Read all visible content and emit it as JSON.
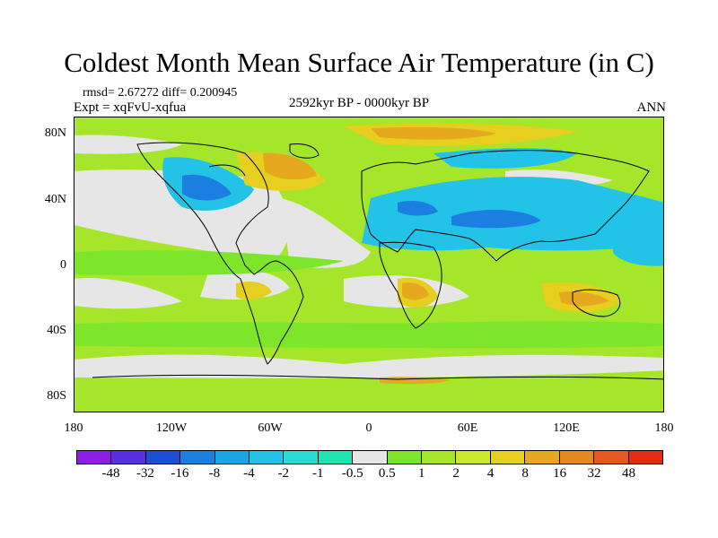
{
  "title": "Coldest Month Mean Surface Air Temperature (in C)",
  "stats": "rmsd= 2.67272 diff= 0.200945",
  "experiment": "Expt = xqFvU-xqfua",
  "period": "2592kyr BP - 0000kyr BP",
  "season": "ANN",
  "lat_labels": [
    "80N",
    "40N",
    "0",
    "40S",
    "80S"
  ],
  "lon_labels": [
    "180",
    "120W",
    "60W",
    "0",
    "60E",
    "120E",
    "180"
  ],
  "colorbar": {
    "colors": [
      "#8b1fe6",
      "#5a2fe0",
      "#1e4ed8",
      "#1a7fe0",
      "#19a6e6",
      "#22c3e6",
      "#27dcd0",
      "#1ee6b0",
      "#e6e6e6",
      "#7ee62a",
      "#a6e62a",
      "#cbe82a",
      "#e6cf1f",
      "#e6a81f",
      "#e68a1f",
      "#e6581f",
      "#e62a10"
    ],
    "labels": [
      "-48",
      "-32",
      "-16",
      "-8",
      "-4",
      "-2",
      "-1",
      "-0.5",
      "0.5",
      "1",
      "2",
      "4",
      "8",
      "16",
      "32",
      "48"
    ]
  }
}
